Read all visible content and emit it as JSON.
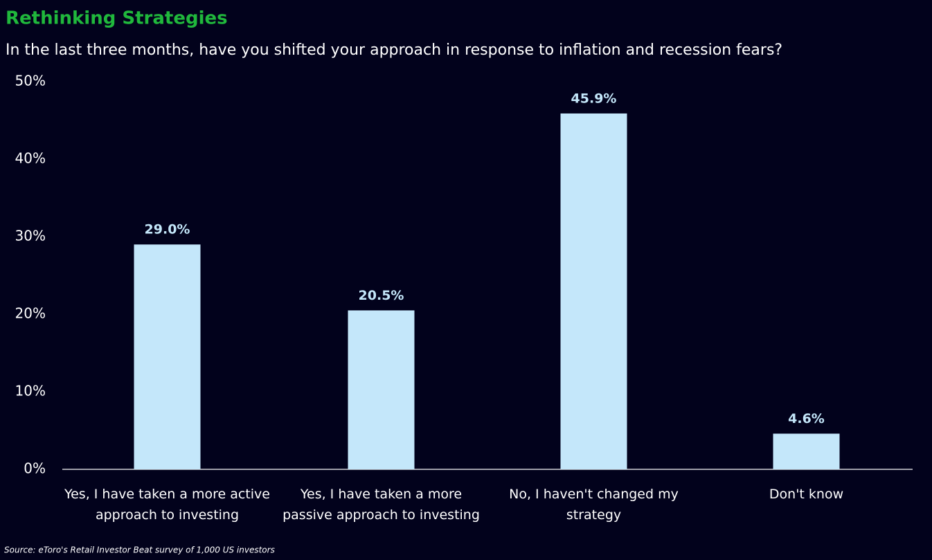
{
  "chart_data": {
    "type": "bar",
    "title": "Rethinking Strategies",
    "subtitle": "In the last three months, have you shifted your approach in response to inflation and recession fears?",
    "categories": [
      "Yes, I have taken a more active approach to investing",
      "Yes, I have taken a more passive approach to investing",
      "No, I haven't changed my strategy",
      "Don't know"
    ],
    "values": [
      29.0,
      20.5,
      45.9,
      4.6
    ],
    "value_labels": [
      "29.0%",
      "20.5%",
      "45.9%",
      "4.6%"
    ],
    "color": "#c4e7fa",
    "ylim": [
      0,
      50
    ],
    "yticks": [
      {
        "value": 0,
        "label": "0%"
      },
      {
        "value": 10,
        "label": "10%"
      },
      {
        "value": 20,
        "label": "20%"
      },
      {
        "value": 30,
        "label": "30%"
      },
      {
        "value": 40,
        "label": "40%"
      },
      {
        "value": 50,
        "label": "50%"
      }
    ],
    "source": "Source: eToro's Retail Investor Beat survey of 1,000 US investors"
  }
}
